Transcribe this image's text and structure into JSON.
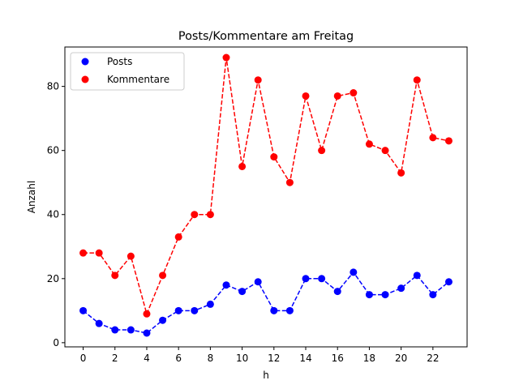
{
  "chart_data": {
    "type": "line",
    "title": "Posts/Kommentare am Freitag",
    "xlabel": "h",
    "ylabel": "Anzahl",
    "x": [
      0,
      1,
      2,
      3,
      4,
      5,
      6,
      7,
      8,
      9,
      10,
      11,
      12,
      13,
      14,
      15,
      16,
      17,
      18,
      19,
      20,
      21,
      22,
      23
    ],
    "xlim": [
      -1.15,
      24.15
    ],
    "ylim": [
      -1.3,
      92.3
    ],
    "xticks": [
      0,
      2,
      4,
      6,
      8,
      10,
      12,
      14,
      16,
      18,
      20,
      22
    ],
    "yticks": [
      0,
      20,
      40,
      60,
      80
    ],
    "grid": false,
    "legend_position": "top-left",
    "series": [
      {
        "name": "Posts",
        "color": "#0000ff",
        "linestyle": "dashed",
        "marker": "circle",
        "values": [
          10,
          6,
          4,
          4,
          3,
          7,
          10,
          10,
          12,
          18,
          16,
          19,
          10,
          10,
          20,
          20,
          16,
          22,
          15,
          15,
          17,
          21,
          15,
          19
        ]
      },
      {
        "name": "Kommentare",
        "color": "#ff0000",
        "linestyle": "dashed",
        "marker": "circle",
        "values": [
          28,
          28,
          21,
          27,
          9,
          21,
          33,
          40,
          40,
          89,
          55,
          82,
          58,
          50,
          77,
          60,
          77,
          78,
          62,
          60,
          53,
          82,
          64,
          63
        ]
      }
    ]
  }
}
